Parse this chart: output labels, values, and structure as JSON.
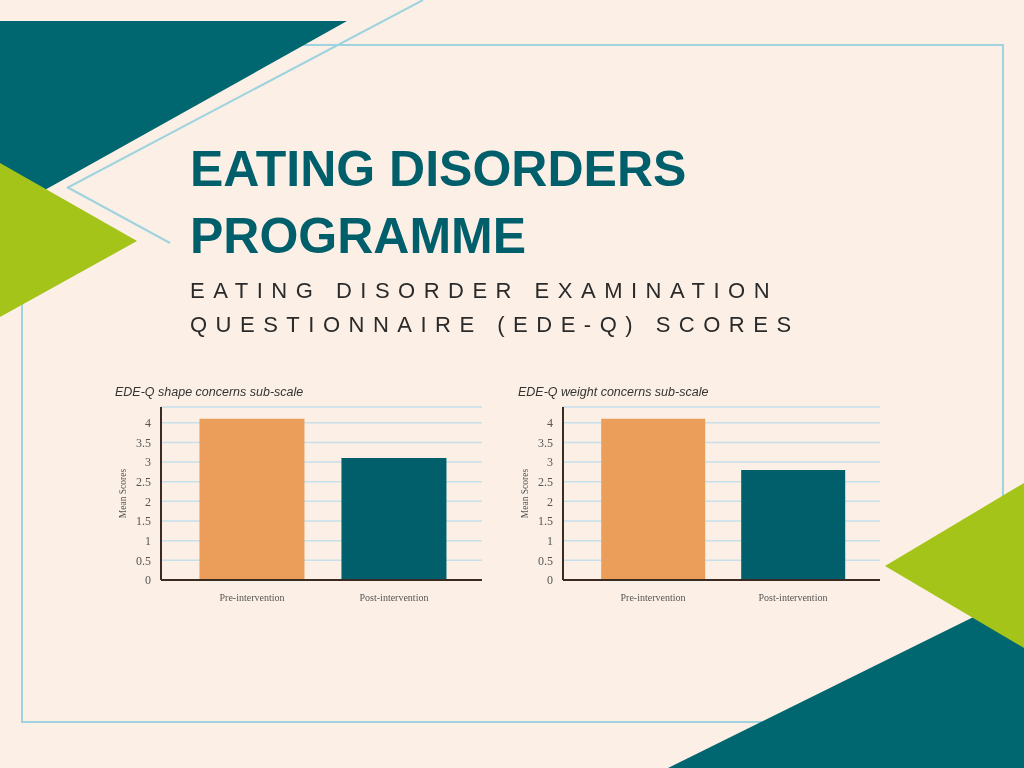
{
  "chart_data": [
    {
      "type": "other",
      "title": "EATING DISORDERS PROGRAMME",
      "subtitle": "EATING DISORDER EXAMINATION QUESTIONNAIRE (EDE-Q) SCORES"
    },
    {
      "type": "bar",
      "title": "EDE-Q shape concerns sub-scale",
      "ylabel": "Mean Scores",
      "categories": [
        "Pre-intervention",
        "Post-intervention"
      ],
      "values": [
        4.1,
        3.1
      ],
      "colors": [
        "#eb9d5a",
        "#005f6b"
      ],
      "ylim": [
        0,
        4.4
      ],
      "yticks": [
        0,
        0.5,
        1,
        1.5,
        2,
        2.5,
        3,
        3.5,
        4
      ],
      "grid": "y"
    },
    {
      "type": "bar",
      "title": "EDE-Q weight concerns sub-scale",
      "ylabel": "Mean Scores",
      "categories": [
        "Pre-intervention",
        "Post-intervention"
      ],
      "values": [
        4.1,
        2.8
      ],
      "colors": [
        "#eb9d5a",
        "#005f6b"
      ],
      "ylim": [
        0,
        4.4
      ],
      "yticks": [
        0,
        0.5,
        1,
        1.5,
        2,
        2.5,
        3,
        3.5,
        4
      ],
      "grid": "y"
    }
  ]
}
